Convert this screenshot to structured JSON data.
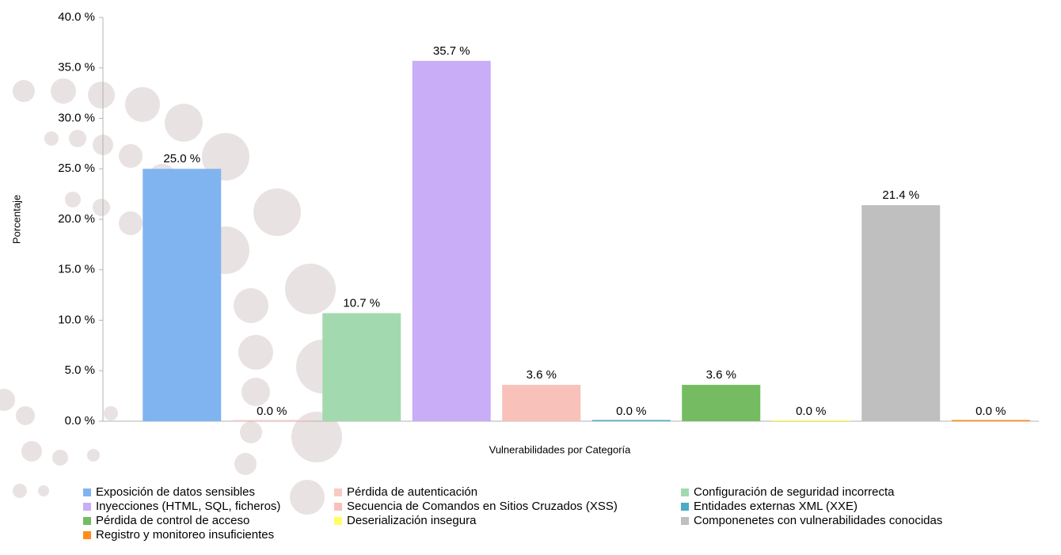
{
  "chart_data": {
    "type": "bar",
    "y_label": "Porcentaje",
    "x_label": "Vulnerabilidades por Categoría",
    "categories": [
      "Exposición de datos sensibles",
      "Pérdida de autenticación",
      "Configuración de seguridad incorrecta",
      "Inyecciones (HTML, SQL, ficheros)",
      "Secuencia de Comandos en Sitios Cruzados (XSS)",
      "Entidades externas XML (XXE)",
      "Pérdida de control de acceso",
      "Deserialización insegura",
      "Componenetes con vulnerabilidades conocidas",
      "Registro y monitoreo insuficientes"
    ],
    "values": [
      25.0,
      0.0,
      10.7,
      35.7,
      3.6,
      0.0,
      3.6,
      0.0,
      21.4,
      0.0
    ],
    "value_labels": [
      "25.0 %",
      "0.0 %",
      "10.7 %",
      "35.7 %",
      "3.6 %",
      "0.0 %",
      "3.6 %",
      "0.0 %",
      "21.4 %",
      "0.0 %"
    ],
    "colors": [
      "#80b4f0",
      "#f9c9c4",
      "#a3d9ae",
      "#c9adf7",
      "#f8c1b9",
      "#4bacc6",
      "#74bb62",
      "#ffff66",
      "#bfbfbf",
      "#ff8c1a"
    ],
    "ylim": [
      0,
      40
    ],
    "yticks": [
      {
        "value": 0,
        "label": "0.0 %"
      },
      {
        "value": 5,
        "label": "5.0 %"
      },
      {
        "value": 10,
        "label": "10.0 %"
      },
      {
        "value": 15,
        "label": "15.0 %"
      },
      {
        "value": 20,
        "label": "20.0 %"
      },
      {
        "value": 25,
        "label": "25.0 %"
      },
      {
        "value": 30,
        "label": "30.0 %"
      },
      {
        "value": 35,
        "label": "35.0 %"
      },
      {
        "value": 40,
        "label": "40.0 %"
      }
    ],
    "legend": "bottom"
  }
}
